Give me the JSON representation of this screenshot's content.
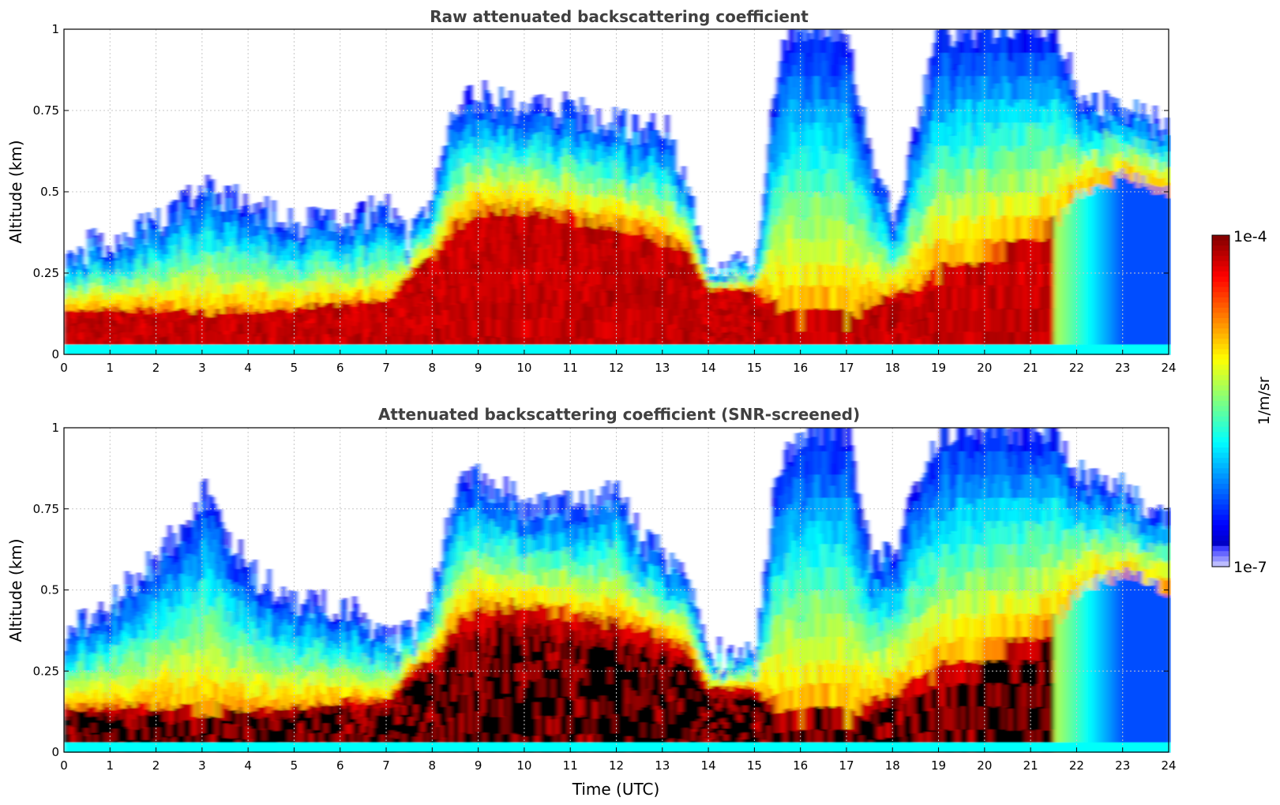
{
  "chart_data": [
    {
      "type": "heatmap",
      "title": "Raw attenuated backscattering coefficient",
      "xlabel": "",
      "ylabel": "Altitude (km)",
      "xlim": [
        0,
        24
      ],
      "ylim": [
        0,
        1
      ],
      "x_ticks": [
        "0",
        "1",
        "2",
        "3",
        "4",
        "5",
        "6",
        "7",
        "8",
        "9",
        "10",
        "11",
        "12",
        "13",
        "14",
        "15",
        "16",
        "17",
        "18",
        "19",
        "20",
        "21",
        "22",
        "23",
        "24"
      ],
      "y_ticks": [
        "0",
        "0.25",
        "0.5",
        "0.75",
        "1"
      ],
      "grid": true,
      "colormap": "jet",
      "color_scale": "log",
      "screened": false,
      "profile": {
        "hours": [
          0,
          1,
          2,
          3,
          4,
          5,
          6,
          7,
          7.5,
          8,
          8.5,
          9,
          10,
          11,
          12,
          12.5,
          13,
          13.5,
          14,
          15,
          15.5,
          16,
          16.5,
          17,
          17.5,
          18,
          19,
          20,
          21,
          21.5,
          22,
          23,
          24
        ],
        "aerosol_top_km": [
          0.14,
          0.14,
          0.14,
          0.13,
          0.14,
          0.14,
          0.16,
          0.16,
          0.25,
          0.3,
          0.4,
          0.45,
          0.45,
          0.42,
          0.4,
          0.38,
          0.35,
          0.33,
          0.2,
          0.2,
          0.14,
          0.1,
          0.15,
          0.1,
          0.16,
          0.18,
          0.25,
          0.3,
          0.35,
          0.4,
          0.5,
          0.55,
          0.5
        ],
        "signal_top_km": [
          0.3,
          0.35,
          0.4,
          0.5,
          0.45,
          0.4,
          0.4,
          0.45,
          0.35,
          0.5,
          0.75,
          0.8,
          0.75,
          0.75,
          0.7,
          0.7,
          0.7,
          0.55,
          0.25,
          0.3,
          0.9,
          1.0,
          1.0,
          1.0,
          0.6,
          0.4,
          1.0,
          1.0,
          1.0,
          1.0,
          0.8,
          0.75,
          0.7
        ]
      }
    },
    {
      "type": "heatmap",
      "title": "Attenuated backscattering coefficient (SNR-screened)",
      "xlabel": "Time (UTC)",
      "ylabel": "Altitude (km)",
      "xlim": [
        0,
        24
      ],
      "ylim": [
        0,
        1
      ],
      "x_ticks": [
        "0",
        "1",
        "2",
        "3",
        "4",
        "5",
        "6",
        "7",
        "8",
        "9",
        "10",
        "11",
        "12",
        "13",
        "14",
        "15",
        "16",
        "17",
        "18",
        "19",
        "20",
        "21",
        "22",
        "23",
        "24"
      ],
      "y_ticks": [
        "0",
        "0.25",
        "0.5",
        "0.75",
        "1"
      ],
      "grid": true,
      "colormap": "jet",
      "color_scale": "log",
      "screened": true,
      "profile": {
        "hours": [
          0,
          1,
          2,
          3,
          4,
          5,
          6,
          7,
          7.5,
          8,
          8.5,
          9,
          10,
          11,
          12,
          12.5,
          13,
          13.5,
          14,
          15,
          15.5,
          16,
          16.5,
          17,
          17.5,
          18,
          19,
          20,
          21,
          21.5,
          22,
          23,
          24
        ],
        "aerosol_top_km": [
          0.14,
          0.14,
          0.14,
          0.13,
          0.14,
          0.14,
          0.16,
          0.16,
          0.25,
          0.3,
          0.4,
          0.45,
          0.45,
          0.42,
          0.4,
          0.38,
          0.35,
          0.33,
          0.2,
          0.2,
          0.14,
          0.1,
          0.15,
          0.1,
          0.16,
          0.18,
          0.25,
          0.3,
          0.35,
          0.4,
          0.5,
          0.55,
          0.5
        ],
        "signal_top_km": [
          0.35,
          0.45,
          0.6,
          0.8,
          0.55,
          0.45,
          0.45,
          0.35,
          0.35,
          0.5,
          0.8,
          0.85,
          0.75,
          0.75,
          0.8,
          0.65,
          0.6,
          0.55,
          0.3,
          0.3,
          0.9,
          1.0,
          1.0,
          1.0,
          0.6,
          0.6,
          1.0,
          1.0,
          1.0,
          1.0,
          0.85,
          0.8,
          0.7
        ]
      }
    }
  ],
  "colorbar": {
    "max_label": "1e-4",
    "min_label": "1e-7",
    "units": "1/m/sr",
    "colormap": "jet"
  },
  "colors": {
    "background": "#ffffff",
    "axes": "#000000",
    "grid": "#c8c8c8",
    "title": "#404040",
    "screened_mask": "#000000"
  }
}
